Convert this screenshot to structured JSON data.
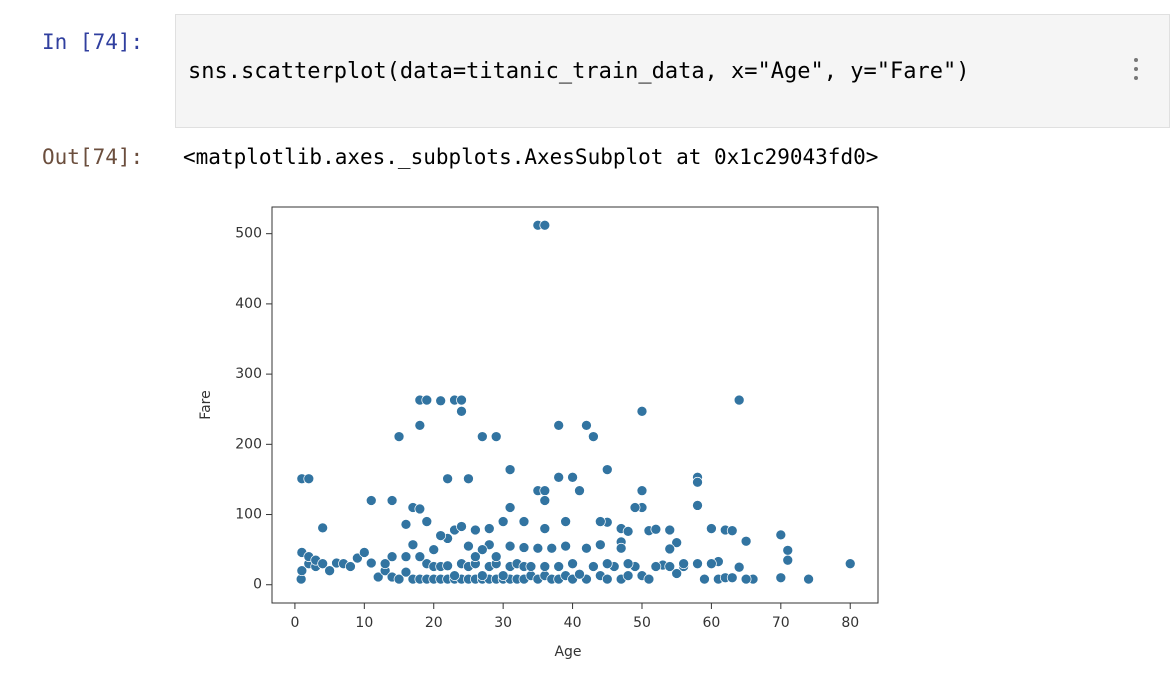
{
  "cell": {
    "in_prompt": "In [74]:",
    "code": "sns.scatterplot(data=titanic_train_data, x=\"Age\", y=\"Fare\")",
    "out_prompt": "Out[74]:",
    "output_text": "<matplotlib.axes._subplots.AxesSubplot at 0x1c29043fd0>"
  },
  "chart_data": {
    "type": "scatter",
    "xlabel": "Age",
    "ylabel": "Fare",
    "color": "#3274a1",
    "xlim": [
      -3.3,
      84
    ],
    "ylim": [
      -26,
      538
    ],
    "xticks": [
      0,
      10,
      20,
      30,
      40,
      50,
      60,
      70,
      80
    ],
    "yticks": [
      0,
      100,
      200,
      300,
      400,
      500
    ],
    "x": [
      35,
      36,
      1,
      2,
      4,
      11,
      14,
      15,
      18,
      19,
      18,
      21,
      23,
      24,
      24,
      27,
      29,
      22,
      25,
      31,
      38,
      42,
      43,
      45,
      50,
      64,
      58,
      58,
      58,
      38,
      40,
      41,
      35,
      36,
      36,
      50,
      50,
      49,
      45,
      47,
      31,
      30,
      17,
      18,
      16,
      17,
      22,
      23,
      24,
      26,
      28,
      33,
      36,
      39,
      44,
      47,
      48,
      51,
      52,
      54,
      55,
      60,
      62,
      63,
      65,
      70,
      71,
      71,
      70,
      74,
      80,
      66,
      64,
      61,
      60,
      56,
      55,
      54,
      53,
      0.9,
      1,
      2,
      3,
      1,
      2,
      3,
      4,
      5,
      6,
      7,
      8,
      9,
      10,
      11,
      12,
      13,
      14,
      15,
      16,
      17,
      18,
      19,
      20,
      21,
      22,
      23,
      24,
      25,
      26,
      27,
      28,
      29,
      30,
      31,
      32,
      33,
      34,
      35,
      36,
      37,
      38,
      39,
      40,
      42,
      44,
      45,
      46,
      47,
      48,
      49,
      50,
      51,
      52,
      54,
      56,
      58,
      59,
      61,
      62,
      63,
      65,
      19,
      20,
      21,
      22,
      23,
      24,
      25,
      26,
      27,
      28,
      29,
      30,
      31,
      32,
      33,
      34,
      36,
      38,
      40,
      41,
      43,
      45,
      47,
      48,
      33,
      35,
      37,
      39,
      42,
      44,
      28,
      25,
      20,
      19,
      21,
      27,
      29,
      31,
      26,
      18,
      16,
      14,
      13
    ],
    "values": [
      512,
      512,
      151,
      151,
      81,
      120,
      120,
      211,
      263,
      263,
      227,
      262,
      263,
      263,
      247,
      211,
      211,
      151,
      151,
      164,
      227,
      227,
      211,
      164,
      247,
      263,
      153,
      146,
      113,
      153,
      153,
      134,
      134,
      134,
      120,
      134,
      110,
      110,
      89,
      80,
      110,
      90,
      110,
      108,
      86,
      57,
      66,
      78,
      83,
      78,
      80,
      90,
      80,
      90,
      90,
      61,
      76,
      77,
      79,
      78,
      60,
      80,
      78,
      77,
      62,
      71,
      49,
      35,
      10,
      8,
      30,
      8,
      25,
      33,
      30,
      26,
      16,
      51,
      28,
      8,
      20,
      30,
      26,
      46,
      40,
      35,
      30,
      20,
      31,
      30,
      26,
      38,
      46,
      31,
      11,
      20,
      11,
      8,
      18,
      8,
      8,
      8,
      8,
      8,
      8,
      8,
      8,
      8,
      8,
      8,
      8,
      8,
      8,
      8,
      8,
      8,
      13,
      8,
      13,
      8,
      8,
      13,
      8,
      8,
      13,
      8,
      26,
      8,
      13,
      26,
      13,
      8,
      26,
      26,
      30,
      30,
      8,
      8,
      10,
      10,
      8,
      30,
      26,
      26,
      27,
      13,
      30,
      26,
      30,
      13,
      26,
      30,
      13,
      26,
      30,
      26,
      26,
      26,
      26,
      30,
      15,
      26,
      30,
      52,
      30,
      53,
      52,
      52,
      55,
      52,
      57,
      57,
      55,
      50,
      90,
      70,
      50,
      40,
      55,
      40,
      40,
      40,
      40,
      30
    ]
  }
}
